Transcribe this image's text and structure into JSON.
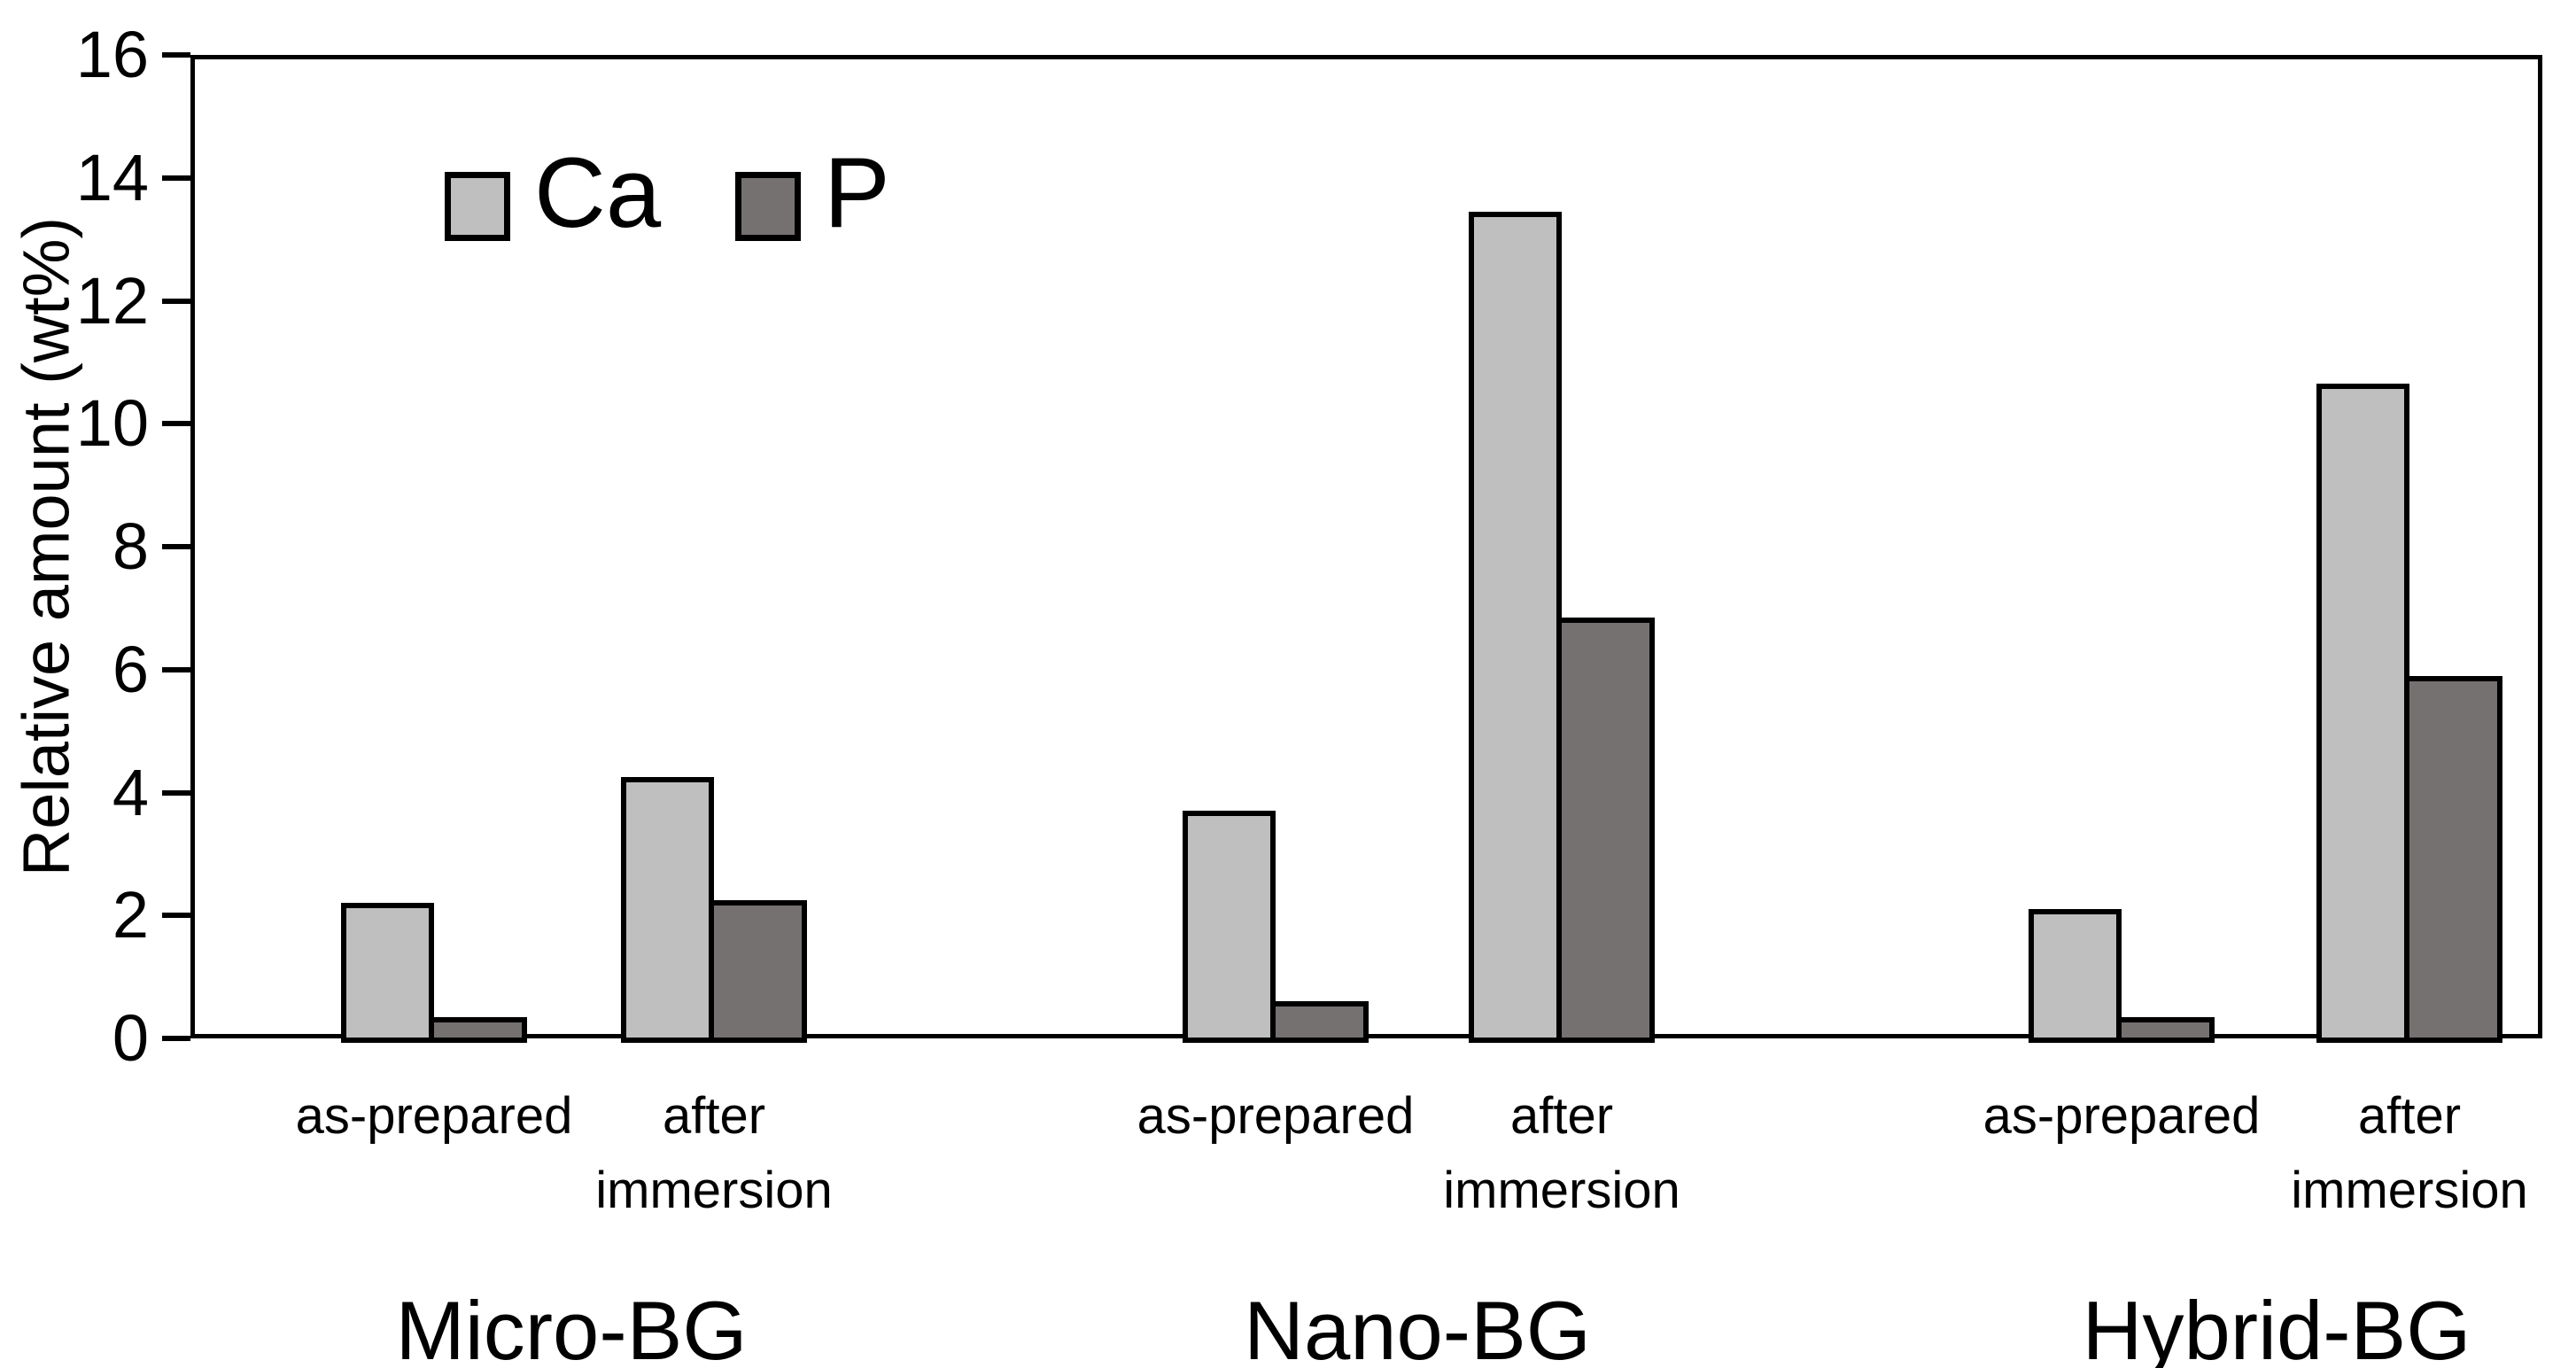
{
  "chart_data": {
    "type": "bar",
    "title": "",
    "xlabel": "",
    "ylabel": "Relative amount (wt%)",
    "ylim": [
      0,
      16
    ],
    "yticks": [
      "0",
      "2",
      "4",
      "6",
      "8",
      "10",
      "12",
      "14",
      "16"
    ],
    "grid": false,
    "frame": "full-box",
    "legend": {
      "position": "top-left-inside",
      "entries": [
        {
          "name": "Ca",
          "color": "#bfbfbf"
        },
        {
          "name": "P",
          "color": "#767171"
        }
      ]
    },
    "series_names": [
      "Ca",
      "P"
    ],
    "categories": [
      "Micro-BG",
      "Nano-BG",
      "Hybrid-BG"
    ],
    "conditions": [
      "as-prepared",
      "after immersion"
    ],
    "groups": [
      {
        "label": "Micro-BG",
        "conditions": [
          {
            "label": "as-prepared",
            "values": {
              "Ca": 2.2,
              "P": 0.35
            }
          },
          {
            "label": "after immersion",
            "values": {
              "Ca": 4.25,
              "P": 2.25
            }
          }
        ]
      },
      {
        "label": "Nano-BG",
        "conditions": [
          {
            "label": "as-prepared",
            "values": {
              "Ca": 3.7,
              "P": 0.6
            }
          },
          {
            "label": "after immersion",
            "values": {
              "Ca": 13.45,
              "P": 6.85
            }
          }
        ]
      },
      {
        "label": "Hybrid-BG",
        "conditions": [
          {
            "label": "as-prepared",
            "values": {
              "Ca": 2.1,
              "P": 0.35
            }
          },
          {
            "label": "after immersion",
            "values": {
              "Ca": 10.65,
              "P": 5.9
            }
          }
        ]
      }
    ],
    "colors": {
      "bar_fill_ca": "#bfbfbf",
      "bar_fill_p": "#767171",
      "bar_border": "#000000",
      "axis": "#000000",
      "background": "#ffffff",
      "text": "#000000"
    }
  }
}
